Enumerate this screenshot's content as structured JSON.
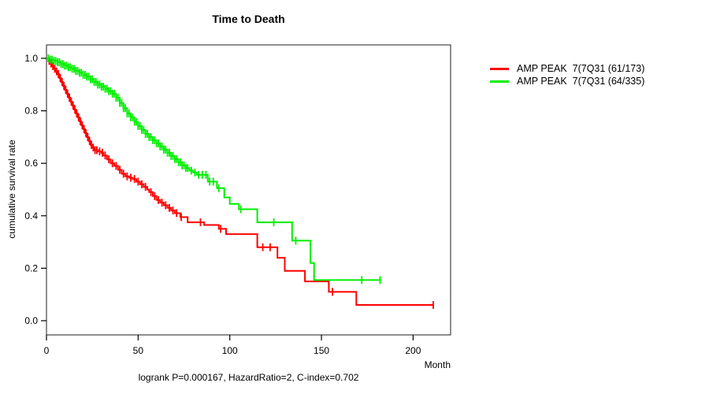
{
  "title": "Time to Death",
  "caption": "logrank P=0.000167, HazardRatio=2, C-index=0.702",
  "chart_data": {
    "type": "line",
    "subtype": "kaplan-meier-step",
    "title": "Time to Death",
    "xlabel": "Month",
    "ylabel": "cumulative survival rate",
    "xlim": [
      0,
      220
    ],
    "ylim": [
      0,
      1.0
    ],
    "x_ticks": [
      "0",
      "50",
      "100",
      "150",
      "200"
    ],
    "x_tick_values": [
      0,
      50,
      100,
      150,
      200
    ],
    "y_ticks": [
      "0.0",
      "0.2",
      "0.4",
      "0.6",
      "0.8",
      "1.0"
    ],
    "y_tick_values": [
      0.0,
      0.2,
      0.4,
      0.6,
      0.8,
      1.0
    ],
    "grid": false,
    "legend_position": "right-outside",
    "caption": "logrank P=0.000167, HazardRatio=2, C-index=0.702",
    "series": [
      {
        "name": "AMP PEAK  7(7Q31 (61/173)",
        "color": "#ff0000",
        "events_total": "61/173",
        "end_month": 211,
        "steps": [
          [
            0,
            1.0
          ],
          [
            1,
            0.99
          ],
          [
            2,
            0.98
          ],
          [
            3,
            0.97
          ],
          [
            4,
            0.96
          ],
          [
            5,
            0.95
          ],
          [
            6,
            0.94
          ],
          [
            7,
            0.925
          ],
          [
            8,
            0.91
          ],
          [
            9,
            0.895
          ],
          [
            10,
            0.88
          ],
          [
            11,
            0.865
          ],
          [
            12,
            0.85
          ],
          [
            13,
            0.835
          ],
          [
            14,
            0.82
          ],
          [
            15,
            0.805
          ],
          [
            16,
            0.79
          ],
          [
            17,
            0.775
          ],
          [
            18,
            0.76
          ],
          [
            19,
            0.745
          ],
          [
            20,
            0.73
          ],
          [
            21,
            0.715
          ],
          [
            22,
            0.7
          ],
          [
            23,
            0.685
          ],
          [
            24,
            0.67
          ],
          [
            25,
            0.66
          ],
          [
            26,
            0.65
          ],
          [
            28,
            0.645
          ],
          [
            30,
            0.64
          ],
          [
            31,
            0.63
          ],
          [
            33,
            0.615
          ],
          [
            35,
            0.6
          ],
          [
            37,
            0.59
          ],
          [
            39,
            0.575
          ],
          [
            41,
            0.56
          ],
          [
            43,
            0.55
          ],
          [
            45,
            0.545
          ],
          [
            47,
            0.54
          ],
          [
            49,
            0.53
          ],
          [
            51,
            0.52
          ],
          [
            53,
            0.51
          ],
          [
            55,
            0.5
          ],
          [
            56,
            0.49
          ],
          [
            58,
            0.475
          ],
          [
            60,
            0.46
          ],
          [
            62,
            0.45
          ],
          [
            64,
            0.44
          ],
          [
            66,
            0.43
          ],
          [
            68,
            0.42
          ],
          [
            70,
            0.41
          ],
          [
            73,
            0.395
          ],
          [
            77,
            0.375
          ],
          [
            86,
            0.365
          ],
          [
            94,
            0.35
          ],
          [
            98,
            0.33
          ],
          [
            115,
            0.28
          ],
          [
            126,
            0.24
          ],
          [
            130,
            0.19
          ],
          [
            141,
            0.15
          ],
          [
            154,
            0.11
          ],
          [
            169,
            0.06
          ]
        ],
        "censor_months": [
          1.5,
          2.5,
          3.5,
          4.5,
          5.5,
          6.5,
          7.5,
          8.5,
          9.5,
          10.5,
          11.5,
          12.5,
          13.5,
          14.5,
          15.5,
          16.5,
          17.5,
          18.5,
          19.5,
          20.5,
          21.5,
          22.5,
          23.5,
          24.5,
          25.5,
          26.5,
          27.5,
          29,
          30.5,
          32,
          34,
          36,
          38,
          40,
          42,
          44,
          46,
          48,
          50,
          52,
          54,
          57,
          59,
          61,
          63,
          65,
          67,
          69,
          71,
          73.5,
          84,
          95,
          118,
          122,
          156,
          211
        ]
      },
      {
        "name": "AMP PEAK  7(7Q31 (64/335)",
        "color": "#00ee00",
        "events_total": "64/335",
        "end_month": 182,
        "steps": [
          [
            0,
            1.0
          ],
          [
            2,
            0.995
          ],
          [
            4,
            0.99
          ],
          [
            6,
            0.985
          ],
          [
            8,
            0.978
          ],
          [
            10,
            0.972
          ],
          [
            12,
            0.966
          ],
          [
            14,
            0.96
          ],
          [
            16,
            0.952
          ],
          [
            18,
            0.945
          ],
          [
            20,
            0.937
          ],
          [
            22,
            0.93
          ],
          [
            24,
            0.92
          ],
          [
            26,
            0.91
          ],
          [
            28,
            0.9
          ],
          [
            30,
            0.892
          ],
          [
            32,
            0.884
          ],
          [
            34,
            0.875
          ],
          [
            36,
            0.865
          ],
          [
            38,
            0.85
          ],
          [
            40,
            0.83
          ],
          [
            42,
            0.81
          ],
          [
            44,
            0.79
          ],
          [
            46,
            0.775
          ],
          [
            48,
            0.758
          ],
          [
            50,
            0.742
          ],
          [
            52,
            0.727
          ],
          [
            54,
            0.712
          ],
          [
            56,
            0.7
          ],
          [
            58,
            0.688
          ],
          [
            60,
            0.676
          ],
          [
            62,
            0.664
          ],
          [
            64,
            0.652
          ],
          [
            66,
            0.64
          ],
          [
            68,
            0.628
          ],
          [
            70,
            0.616
          ],
          [
            72,
            0.604
          ],
          [
            74,
            0.592
          ],
          [
            76,
            0.582
          ],
          [
            78,
            0.572
          ],
          [
            80,
            0.565
          ],
          [
            82,
            0.556
          ],
          [
            88,
            0.53
          ],
          [
            93,
            0.505
          ],
          [
            97,
            0.47
          ],
          [
            100,
            0.445
          ],
          [
            105,
            0.425
          ],
          [
            115,
            0.375
          ],
          [
            134,
            0.305
          ],
          [
            144,
            0.22
          ],
          [
            146,
            0.155
          ]
        ],
        "censor_months": [
          1,
          2,
          3,
          4,
          5,
          6,
          7,
          8,
          9,
          10,
          11,
          12,
          13,
          14,
          15,
          16,
          17,
          18,
          19,
          20,
          21,
          22,
          23,
          24,
          25,
          26,
          27,
          28,
          29,
          30,
          31,
          32,
          33,
          34,
          35,
          36,
          37,
          38,
          39,
          40,
          41,
          42,
          43,
          44,
          45,
          46,
          47,
          48,
          49,
          50,
          51,
          52,
          53,
          54,
          55,
          56,
          57,
          58,
          59,
          60,
          61,
          62,
          63,
          64,
          65,
          66,
          67,
          68,
          69,
          70,
          71,
          72,
          73,
          74,
          75,
          76,
          77,
          79,
          81,
          83,
          85,
          87,
          89,
          91,
          94,
          106,
          124,
          136,
          172,
          182
        ]
      }
    ]
  }
}
